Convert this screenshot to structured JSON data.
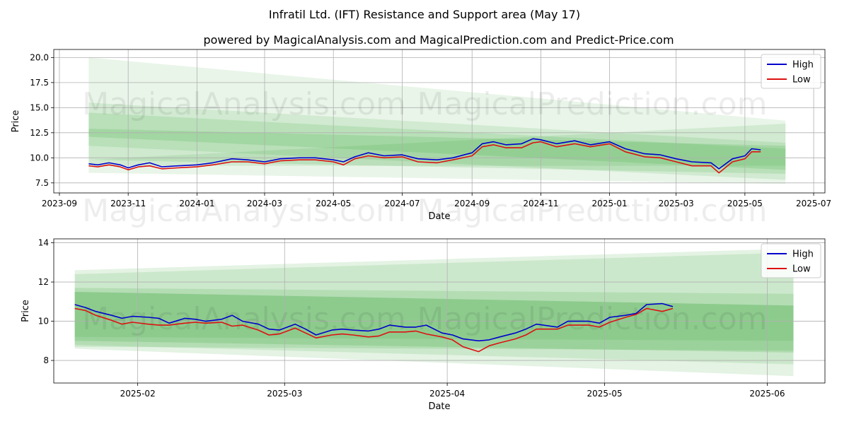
{
  "title": "Infratil Ltd. (IFT) Resistance and Support area (May 17)",
  "subtitle": "powered by MagicalAnalysis.com and MagicalPrediction.com and Predict-Price.com",
  "watermarks": [
    "MagicalAnalysis.com",
    "MagicalPrediction.com"
  ],
  "colors": {
    "high": "#0000cc",
    "low": "#dd1111",
    "band": "#2ca02c",
    "grid": "#b0b0b0"
  },
  "chart_data": [
    {
      "type": "line",
      "xlabel": "Date",
      "ylabel": "Price",
      "xlim": [
        "2023-08-27",
        "2025-07-11"
      ],
      "ylim": [
        6.5,
        20.8
      ],
      "xticks": [
        "2023-09",
        "2023-11",
        "2024-01",
        "2024-03",
        "2024-05",
        "2024-07",
        "2024-09",
        "2024-11",
        "2025-01",
        "2025-03",
        "2025-05",
        "2025-07"
      ],
      "yticks": [
        7.5,
        10.0,
        12.5,
        15.0,
        17.5,
        20.0
      ],
      "ytick_labels": [
        "7.5",
        "10.0",
        "12.5",
        "15.0",
        "17.5",
        "20.0"
      ],
      "grid": true,
      "legend": "top-right",
      "bands": [
        {
          "x": [
            "2023-09-27",
            "2025-06-06"
          ],
          "upper": [
            20.0,
            13.7
          ],
          "lower": [
            8.5,
            7.4
          ],
          "opacity": 0.1
        },
        {
          "x": [
            "2023-09-27",
            "2025-06-06"
          ],
          "upper": [
            15.5,
            11.5
          ],
          "lower": [
            11.2,
            7.8
          ],
          "opacity": 0.12
        },
        {
          "x": [
            "2023-09-27",
            "2025-06-06"
          ],
          "upper": [
            14.5,
            10.9
          ],
          "lower": [
            9.8,
            8.4
          ],
          "opacity": 0.14
        },
        {
          "x": [
            "2023-09-27",
            "2025-06-06"
          ],
          "upper": [
            12.9,
            11.2
          ],
          "lower": [
            12.1,
            8.8
          ],
          "opacity": 0.16
        },
        {
          "x": [
            "2023-09-27",
            "2025-06-06"
          ],
          "upper": [
            9.8,
            13.4
          ],
          "lower": [
            9.2,
            9.2
          ],
          "opacity": 0.12
        }
      ],
      "series": [
        {
          "name": "High",
          "x": [
            "2023-09-27",
            "2023-10-05",
            "2023-10-15",
            "2023-10-25",
            "2023-11-01",
            "2023-11-10",
            "2023-11-20",
            "2023-12-01",
            "2023-12-15",
            "2024-01-01",
            "2024-01-15",
            "2024-02-01",
            "2024-02-15",
            "2024-03-01",
            "2024-03-15",
            "2024-04-01",
            "2024-04-15",
            "2024-05-01",
            "2024-05-10",
            "2024-05-20",
            "2024-06-01",
            "2024-06-15",
            "2024-07-01",
            "2024-07-15",
            "2024-08-01",
            "2024-08-15",
            "2024-09-01",
            "2024-09-10",
            "2024-09-20",
            "2024-10-01",
            "2024-10-15",
            "2024-10-25",
            "2024-11-01",
            "2024-11-15",
            "2024-12-01",
            "2024-12-15",
            "2025-01-01",
            "2025-01-15",
            "2025-02-01",
            "2025-02-15",
            "2025-03-01",
            "2025-03-15",
            "2025-04-01",
            "2025-04-08",
            "2025-04-20",
            "2025-05-01",
            "2025-05-07",
            "2025-05-15"
          ],
          "y": [
            9.4,
            9.3,
            9.5,
            9.3,
            9.0,
            9.3,
            9.5,
            9.1,
            9.2,
            9.3,
            9.5,
            9.9,
            9.8,
            9.6,
            9.9,
            10.0,
            10.0,
            9.8,
            9.6,
            10.1,
            10.5,
            10.2,
            10.3,
            9.9,
            9.8,
            10.0,
            10.5,
            11.4,
            11.6,
            11.3,
            11.4,
            11.9,
            11.8,
            11.4,
            11.7,
            11.3,
            11.6,
            10.9,
            10.4,
            10.3,
            9.9,
            9.6,
            9.5,
            8.9,
            9.9,
            10.2,
            10.9,
            10.8
          ]
        },
        {
          "name": "Low",
          "x": [
            "2023-09-27",
            "2023-10-05",
            "2023-10-15",
            "2023-10-25",
            "2023-11-01",
            "2023-11-10",
            "2023-11-20",
            "2023-12-01",
            "2023-12-15",
            "2024-01-01",
            "2024-01-15",
            "2024-02-01",
            "2024-02-15",
            "2024-03-01",
            "2024-03-15",
            "2024-04-01",
            "2024-04-15",
            "2024-05-01",
            "2024-05-10",
            "2024-05-20",
            "2024-06-01",
            "2024-06-15",
            "2024-07-01",
            "2024-07-15",
            "2024-08-01",
            "2024-08-15",
            "2024-09-01",
            "2024-09-10",
            "2024-09-20",
            "2024-10-01",
            "2024-10-15",
            "2024-10-25",
            "2024-11-01",
            "2024-11-15",
            "2024-12-01",
            "2024-12-15",
            "2025-01-01",
            "2025-01-15",
            "2025-02-01",
            "2025-02-15",
            "2025-03-01",
            "2025-03-15",
            "2025-04-01",
            "2025-04-08",
            "2025-04-20",
            "2025-05-01",
            "2025-05-07",
            "2025-05-15"
          ],
          "y": [
            9.2,
            9.1,
            9.3,
            9.1,
            8.8,
            9.1,
            9.2,
            8.9,
            9.0,
            9.1,
            9.3,
            9.6,
            9.6,
            9.4,
            9.7,
            9.8,
            9.8,
            9.6,
            9.3,
            9.9,
            10.2,
            10.0,
            10.1,
            9.6,
            9.5,
            9.8,
            10.2,
            11.1,
            11.3,
            11.0,
            11.0,
            11.5,
            11.6,
            11.1,
            11.4,
            11.1,
            11.4,
            10.6,
            10.1,
            10.0,
            9.6,
            9.2,
            9.2,
            8.5,
            9.6,
            9.9,
            10.6,
            10.6
          ]
        }
      ]
    },
    {
      "type": "line",
      "xlabel": "Date",
      "ylabel": "Price",
      "xlim": [
        "2025-01-16",
        "2025-06-12"
      ],
      "ylim": [
        6.85,
        14.2
      ],
      "xticks": [
        "2025-02",
        "2025-03",
        "2025-04",
        "2025-05",
        "2025-06"
      ],
      "xtick_labels": [
        "2025-02",
        "2025-03",
        "2025-04",
        "2025-05",
        "2025-06"
      ],
      "yticks": [
        8,
        10,
        12,
        14
      ],
      "ytick_labels": [
        "8",
        "10",
        "12",
        "14"
      ],
      "grid": true,
      "legend": "top-right",
      "bands": [
        {
          "x": [
            "2025-01-20",
            "2025-06-06"
          ],
          "upper": [
            12.6,
            13.7
          ],
          "lower": [
            8.6,
            7.2
          ],
          "opacity": 0.13
        },
        {
          "x": [
            "2025-01-20",
            "2025-06-06"
          ],
          "upper": [
            12.4,
            13.5
          ],
          "lower": [
            8.8,
            7.8
          ],
          "opacity": 0.13
        },
        {
          "x": [
            "2025-01-20",
            "2025-06-06"
          ],
          "upper": [
            11.7,
            11.4
          ],
          "lower": [
            8.7,
            8.5
          ],
          "opacity": 0.15
        },
        {
          "x": [
            "2025-01-20",
            "2025-06-06"
          ],
          "upper": [
            11.5,
            10.8
          ],
          "lower": [
            9.0,
            8.4
          ],
          "opacity": 0.18
        },
        {
          "x": [
            "2025-01-20",
            "2025-06-06"
          ],
          "upper": [
            11.5,
            10.8
          ],
          "lower": [
            9.2,
            9.0
          ],
          "opacity": 0.12
        }
      ],
      "series": [
        {
          "name": "High",
          "x": [
            "2025-01-20",
            "2025-01-22",
            "2025-01-24",
            "2025-01-27",
            "2025-01-29",
            "2025-01-31",
            "2025-02-03",
            "2025-02-05",
            "2025-02-07",
            "2025-02-10",
            "2025-02-12",
            "2025-02-14",
            "2025-02-17",
            "2025-02-19",
            "2025-02-21",
            "2025-02-24",
            "2025-02-26",
            "2025-02-28",
            "2025-03-03",
            "2025-03-05",
            "2025-03-07",
            "2025-03-10",
            "2025-03-12",
            "2025-03-14",
            "2025-03-17",
            "2025-03-19",
            "2025-03-21",
            "2025-03-24",
            "2025-03-26",
            "2025-03-28",
            "2025-03-31",
            "2025-04-02",
            "2025-04-04",
            "2025-04-07",
            "2025-04-09",
            "2025-04-11",
            "2025-04-14",
            "2025-04-16",
            "2025-04-18",
            "2025-04-22",
            "2025-04-24",
            "2025-04-28",
            "2025-04-30",
            "2025-05-02",
            "2025-05-05",
            "2025-05-07",
            "2025-05-09",
            "2025-05-12",
            "2025-05-14"
          ],
          "y": [
            10.85,
            10.7,
            10.5,
            10.3,
            10.15,
            10.25,
            10.2,
            10.15,
            9.9,
            10.15,
            10.1,
            10.0,
            10.1,
            10.3,
            10.0,
            9.85,
            9.6,
            9.55,
            9.85,
            9.6,
            9.3,
            9.55,
            9.6,
            9.55,
            9.5,
            9.6,
            9.8,
            9.7,
            9.7,
            9.8,
            9.4,
            9.3,
            9.1,
            9.0,
            9.05,
            9.2,
            9.4,
            9.6,
            9.85,
            9.7,
            10.0,
            10.0,
            9.9,
            10.2,
            10.3,
            10.4,
            10.85,
            10.9,
            10.75
          ]
        },
        {
          "name": "Low",
          "x": [
            "2025-01-20",
            "2025-01-22",
            "2025-01-24",
            "2025-01-27",
            "2025-01-29",
            "2025-01-31",
            "2025-02-03",
            "2025-02-05",
            "2025-02-07",
            "2025-02-10",
            "2025-02-12",
            "2025-02-14",
            "2025-02-17",
            "2025-02-19",
            "2025-02-21",
            "2025-02-24",
            "2025-02-26",
            "2025-02-28",
            "2025-03-03",
            "2025-03-05",
            "2025-03-07",
            "2025-03-10",
            "2025-03-12",
            "2025-03-14",
            "2025-03-17",
            "2025-03-19",
            "2025-03-21",
            "2025-03-24",
            "2025-03-26",
            "2025-03-28",
            "2025-03-31",
            "2025-04-02",
            "2025-04-04",
            "2025-04-07",
            "2025-04-09",
            "2025-04-11",
            "2025-04-14",
            "2025-04-16",
            "2025-04-18",
            "2025-04-22",
            "2025-04-24",
            "2025-04-28",
            "2025-04-30",
            "2025-05-02",
            "2025-05-05",
            "2025-05-07",
            "2025-05-09",
            "2025-05-12",
            "2025-05-14"
          ],
          "y": [
            10.65,
            10.55,
            10.3,
            10.05,
            9.85,
            9.95,
            9.85,
            9.8,
            9.8,
            9.9,
            9.95,
            9.9,
            9.95,
            9.75,
            9.8,
            9.55,
            9.3,
            9.35,
            9.65,
            9.4,
            9.15,
            9.3,
            9.35,
            9.3,
            9.2,
            9.25,
            9.45,
            9.45,
            9.5,
            9.35,
            9.2,
            9.05,
            8.7,
            8.45,
            8.75,
            8.9,
            9.1,
            9.3,
            9.6,
            9.6,
            9.8,
            9.8,
            9.7,
            9.95,
            10.2,
            10.35,
            10.65,
            10.5,
            10.65
          ]
        }
      ]
    }
  ]
}
